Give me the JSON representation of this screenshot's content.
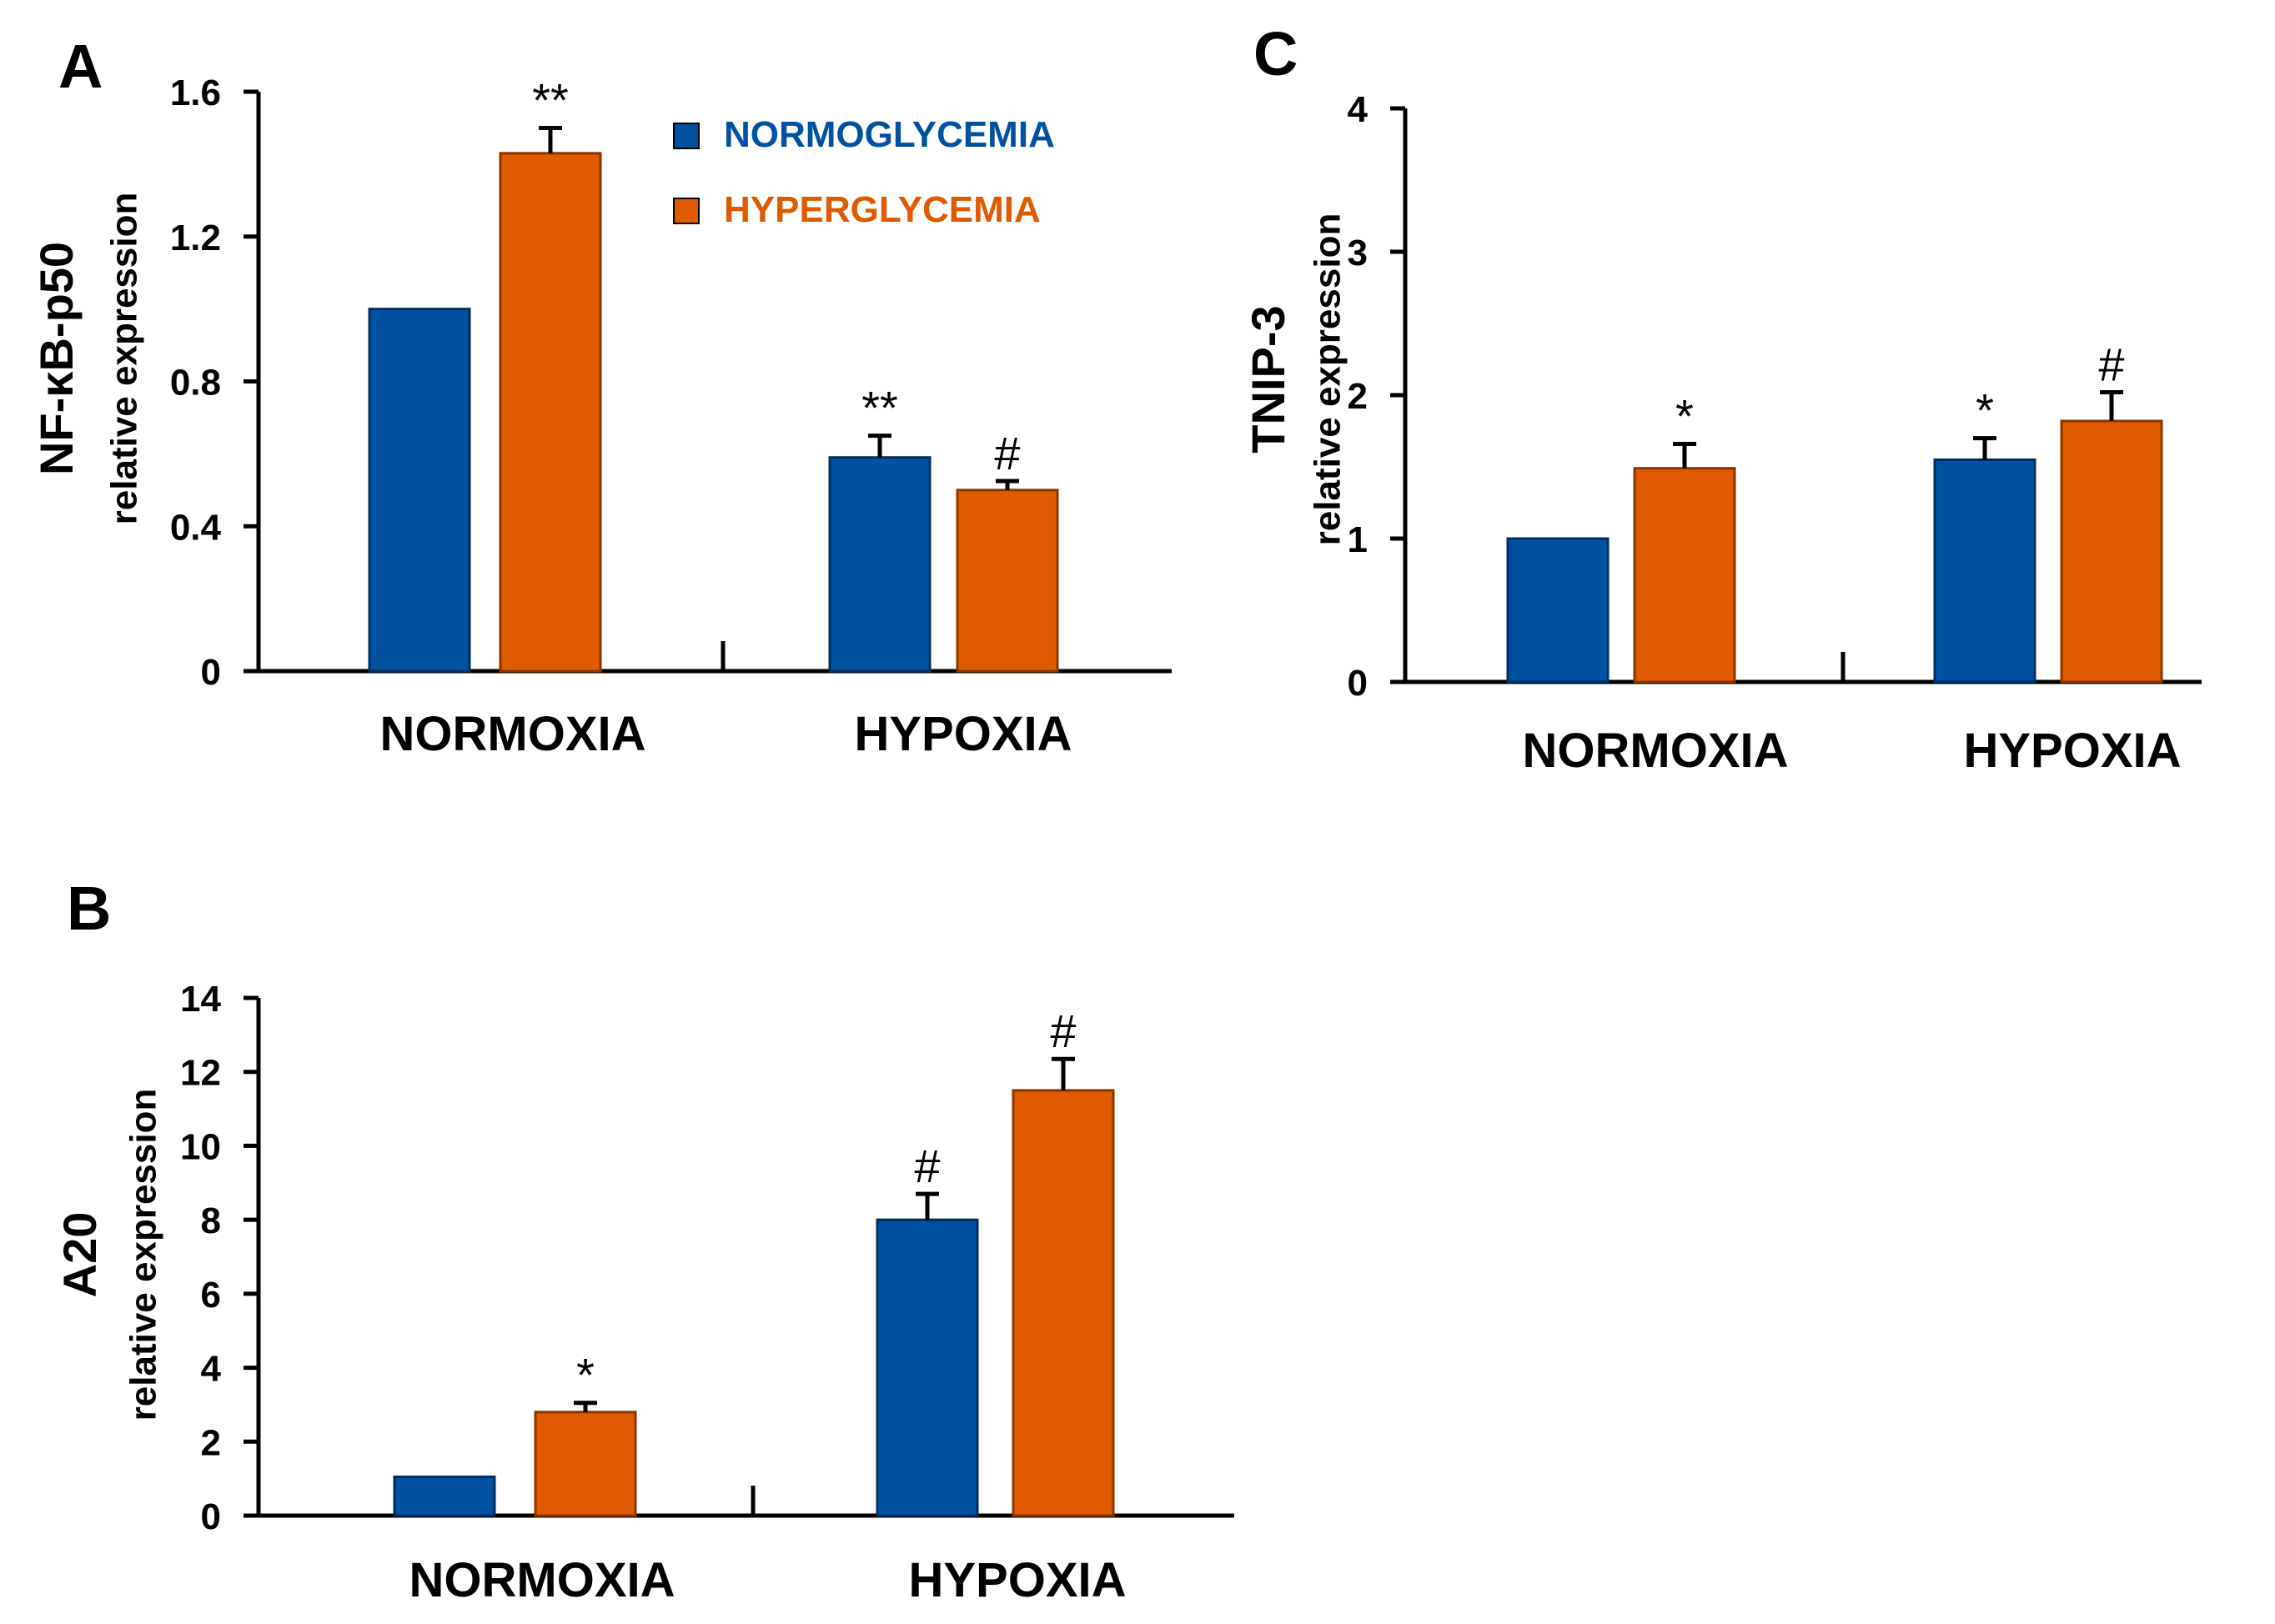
{
  "colors": {
    "normo": "#0052a0",
    "hyper": "#e05a00"
  },
  "legend": [
    {
      "label": "NORMOGLYCEMIA",
      "color": "#0052a0"
    },
    {
      "label": "HYPERGLYCEMIA",
      "color": "#e05a00"
    }
  ],
  "chart_data": [
    {
      "panel": "A",
      "type": "bar",
      "ylabel": "NF-κB-p50",
      "ylabel_sub": "relative expression",
      "categories": [
        "NORMOXIA",
        "HYPOXIA"
      ],
      "ylim": [
        0,
        1.6
      ],
      "yticks": [
        0,
        0.4,
        0.8,
        1.2,
        1.6
      ],
      "ytick_labels": [
        "0",
        "0.4",
        "0.8",
        "1.2",
        "1.6"
      ],
      "series": [
        {
          "name": "NORMOGLYCEMIA",
          "values": [
            1.0,
            0.59
          ],
          "errors": [
            0,
            0.06
          ],
          "annotations": [
            "",
            "**"
          ]
        },
        {
          "name": "HYPERGLYCEMIA",
          "values": [
            1.43,
            0.5
          ],
          "errors": [
            0.07,
            0.025
          ],
          "annotations": [
            "**",
            "#"
          ]
        }
      ]
    },
    {
      "panel": "B",
      "type": "bar",
      "ylabel": "A20",
      "ylabel_sub": "relative expression",
      "categories": [
        "NORMOXIA",
        "HYPOXIA"
      ],
      "ylim": [
        0,
        14
      ],
      "yticks": [
        0,
        2,
        4,
        6,
        8,
        10,
        12,
        14
      ],
      "ytick_labels": [
        "0",
        "2",
        "4",
        "6",
        "8",
        "10",
        "12",
        "14"
      ],
      "series": [
        {
          "name": "NORMOGLYCEMIA",
          "values": [
            1.05,
            8.0
          ],
          "errors": [
            0,
            0.7
          ],
          "annotations": [
            "",
            "#"
          ]
        },
        {
          "name": "HYPERGLYCEMIA",
          "values": [
            2.8,
            11.5
          ],
          "errors": [
            0.25,
            0.85
          ],
          "annotations": [
            "*",
            "#"
          ]
        }
      ]
    },
    {
      "panel": "C",
      "type": "bar",
      "ylabel": "TNIP-3",
      "ylabel_sub": "relative expression",
      "categories": [
        "NORMOXIA",
        "HYPOXIA"
      ],
      "ylim": [
        0,
        4
      ],
      "yticks": [
        0,
        1,
        2,
        3,
        4
      ],
      "ytick_labels": [
        "0",
        "1",
        "2",
        "3",
        "4"
      ],
      "series": [
        {
          "name": "NORMOGLYCEMIA",
          "values": [
            1.0,
            1.55
          ],
          "errors": [
            0,
            0.15
          ],
          "annotations": [
            "",
            "*"
          ]
        },
        {
          "name": "HYPERGLYCEMIA",
          "values": [
            1.49,
            1.82
          ],
          "errors": [
            0.17,
            0.2
          ],
          "annotations": [
            "*",
            "#"
          ]
        }
      ]
    }
  ]
}
